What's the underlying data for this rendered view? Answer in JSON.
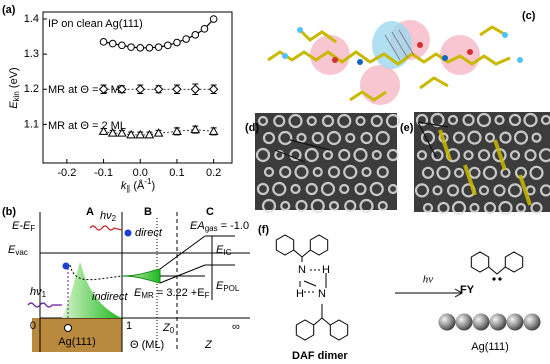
{
  "chart_data": {
    "type": "scatter",
    "panel_label": "(a)",
    "ylabel": {
      "symbol": "E",
      "sub": "kin",
      "unit": " (eV)"
    },
    "xlabel": {
      "symbol": "k",
      "sub": "∥",
      "unit": " (Å",
      "sup": "-1",
      "close": ")"
    },
    "xlim": [
      -0.265,
      0.25
    ],
    "ylim": [
      0.99,
      1.42
    ],
    "xticks": [
      -0.2,
      -0.1,
      {
        "value": 0,
        "label": "0.0"
      },
      0.1,
      0.2
    ],
    "yticks": [
      1.1,
      1.2,
      1.3,
      1.4
    ],
    "series": [
      {
        "name": "IP on clean Ag(111)",
        "color": "#000000",
        "marker": "circle",
        "x": [
          -0.1,
          -0.075,
          -0.05,
          -0.025,
          0,
          0.025,
          0.05,
          0.075,
          0.1,
          0.125,
          0.15,
          0.175,
          0.2
        ],
        "values": [
          1.335,
          1.33,
          1.325,
          1.32,
          1.318,
          1.318,
          1.32,
          1.325,
          1.333,
          1.343,
          1.355,
          1.372,
          1.4
        ]
      },
      {
        "name": "MR at Θ = 1 ML",
        "color": "#000000",
        "marker": "diamond",
        "x": [
          -0.1,
          -0.05,
          0,
          0.05,
          0.1,
          0.15,
          0.2
        ],
        "values": [
          1.2,
          1.2,
          1.2,
          1.2,
          1.2,
          1.2,
          1.2
        ],
        "errors": [
          0.012,
          0.01,
          0.012,
          0.01,
          0.012,
          0.015,
          0.012
        ]
      },
      {
        "name": "MR at Θ = 2 ML",
        "color": "#000000",
        "marker": "triangle",
        "x": [
          -0.1,
          -0.075,
          -0.05,
          -0.025,
          0,
          0.025,
          0.05,
          0.1,
          0.15,
          0.2
        ],
        "values": [
          1.08,
          1.075,
          1.075,
          1.07,
          1.07,
          1.07,
          1.075,
          1.08,
          1.085,
          1.08
        ],
        "errors": [
          0.008,
          0.008,
          0.008,
          0.008,
          0.008,
          0.008,
          0.008,
          0.01,
          0.01,
          0.01
        ]
      }
    ]
  },
  "panel_b": {
    "label": "(b)",
    "regions": [
      "A",
      "B",
      "C"
    ],
    "yaxis": {
      "main": "E-E",
      "sub": "F"
    },
    "evac": {
      "main": "E",
      "sub": "vac"
    },
    "hv2": {
      "main": "hν",
      "sub": "2"
    },
    "direct": "direct",
    "hv1": {
      "main": "hν",
      "sub": "1"
    },
    "indirect": "indirect",
    "ea": {
      "main": "EA",
      "sub": "gas",
      "rest": " = -1.0"
    },
    "eic": {
      "main": "E",
      "sub": "IC"
    },
    "epol": {
      "main": "E",
      "sub": "POL"
    },
    "emr": {
      "main": "E",
      "sub": "MR",
      "rest": " = 3.22 +E",
      "sub2": "F"
    },
    "substrate": "Ag(111)",
    "theta_ticks": [
      "0",
      "1"
    ],
    "theta_label": "Θ (ML)",
    "z0": {
      "main": "Z",
      "sub": "0"
    },
    "z": "Z",
    "infinity": "∞"
  },
  "panel_c": {
    "label": "(c)"
  },
  "panel_d": {
    "label": "(d)"
  },
  "panel_e": {
    "label": "(e)"
  },
  "panel_f": {
    "label": "(f)",
    "atoms": [
      "N",
      "H",
      "N",
      "H"
    ],
    "dimer": "DAF dimer",
    "hv": "hν",
    "product": "FY",
    "substrate": "Ag(111)"
  }
}
